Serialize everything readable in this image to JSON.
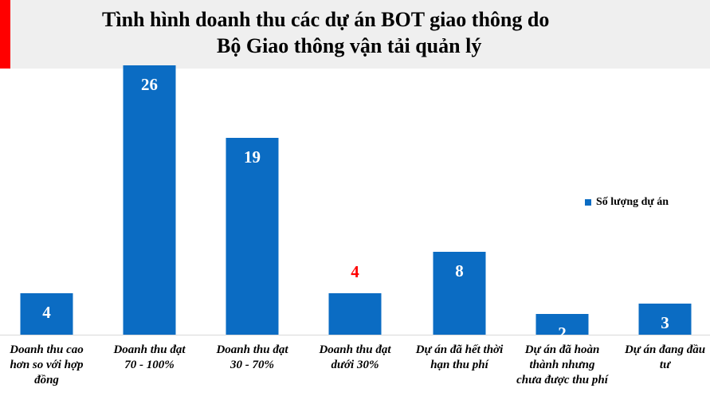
{
  "chart_data": {
    "type": "bar",
    "title_lines": [
      "Tình hình doanh thu các dự án BOT giao thông do",
      "Bộ Giao thông vận tải quản lý"
    ],
    "categories": [
      [
        "Doanh thu cao",
        "hơn so với hợp",
        "đồng"
      ],
      [
        "Doanh thu đạt",
        "70 - 100%"
      ],
      [
        "Doanh thu đạt",
        "30 - 70%"
      ],
      [
        "Doanh thu đạt",
        "dưới 30%"
      ],
      [
        "Dự án đã hết thời",
        "hạn thu phí"
      ],
      [
        "Dự án đã hoàn",
        "thành nhưng",
        "chưa được thu phí"
      ],
      [
        "Dự án đang đầu",
        "tư"
      ]
    ],
    "series": [
      {
        "name": "Số lượng dự án",
        "values": [
          4,
          26,
          19,
          4,
          8,
          2,
          3
        ]
      }
    ],
    "data_label_colors": [
      "#ffffff",
      "#ffffff",
      "#ffffff",
      "#ff0000",
      "#ffffff",
      "#ffffff",
      "#ffffff"
    ],
    "bar_color": "#0b6cc3",
    "legend_position": "right",
    "grid": false
  }
}
